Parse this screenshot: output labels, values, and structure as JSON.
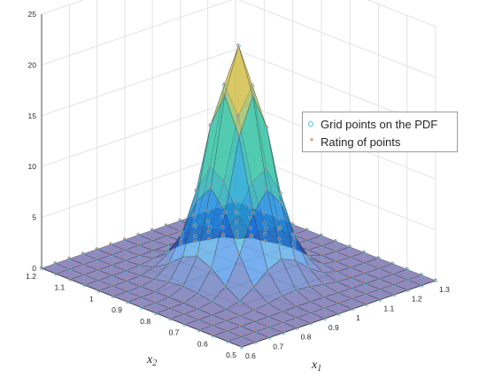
{
  "chart_data": {
    "type": "surface",
    "title": "",
    "xlabel": "x",
    "xlabel_sub": "1",
    "ylabel": "x",
    "ylabel_sub": "2",
    "zlabel": "",
    "xlim": [
      0.6,
      1.3
    ],
    "ylim": [
      0.5,
      1.2
    ],
    "zlim": [
      0,
      25
    ],
    "xticks": [
      "0.6",
      "0.7",
      "0.8",
      "0.9",
      "1",
      "1.1",
      "1.2",
      "1.3"
    ],
    "yticks": [
      "0.5",
      "0.6",
      "0.7",
      "0.8",
      "0.9",
      "1",
      "1.1",
      "1.2"
    ],
    "zticks": [
      "0",
      "5",
      "10",
      "15",
      "20",
      "25"
    ],
    "grid": true,
    "colormap": "parula",
    "surface_peak": 22.5,
    "x_grid": [
      0.6,
      0.65,
      0.7,
      0.75,
      0.8,
      0.85,
      0.9,
      0.95,
      1.0,
      1.05,
      1.1,
      1.15,
      1.2,
      1.25,
      1.3
    ],
    "y_grid": [
      0.5,
      0.55,
      0.6,
      0.65,
      0.7,
      0.75,
      0.8,
      0.85,
      0.9,
      0.95,
      1.0,
      1.05,
      1.1,
      1.15,
      1.2
    ],
    "peak_location": [
      0.95,
      0.85
    ],
    "series": [
      {
        "name": "Grid points on the PDF",
        "marker": "circle",
        "color": "#4fb9e6"
      },
      {
        "name": "Rating of points",
        "marker": "star",
        "color": "#e8703a"
      }
    ],
    "legend_position": "top-right"
  }
}
